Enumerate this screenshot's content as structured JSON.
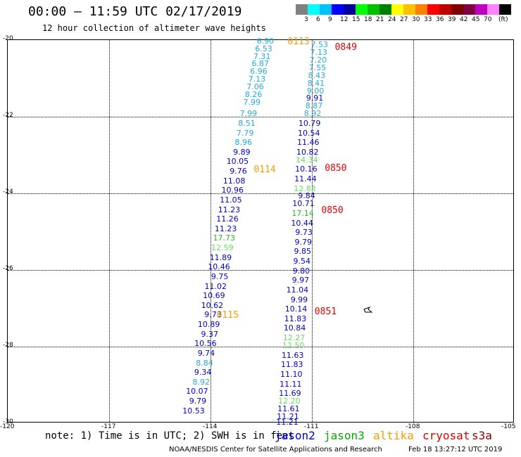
{
  "header": {
    "title": "00:00 – 11:59 UTC 02/17/2019",
    "subtitle": "12 hour collection of altimeter wave heights"
  },
  "colorbar": {
    "unit": "(ft)",
    "colors": [
      "#808080",
      "#00ffff",
      "#00c0ff",
      "#0000ff",
      "#0000a0",
      "#00ff00",
      "#00c000",
      "#008000",
      "#ffff00",
      "#ffc000",
      "#ff8000",
      "#ff0000",
      "#c00000",
      "#800000",
      "#800040",
      "#c000c0",
      "#ff80ff",
      "#000000"
    ],
    "labels": [
      "3",
      "6",
      "9",
      "12",
      "15",
      "18",
      "21",
      "24",
      "27",
      "30",
      "33",
      "36",
      "39",
      "42",
      "45",
      "70"
    ]
  },
  "axes": {
    "lat_labels": [
      "-20",
      "-22",
      "-24",
      "-26",
      "-28",
      "-30"
    ],
    "lon_labels": [
      "-120",
      "-117",
      "-114",
      "-111",
      "-108",
      "-105"
    ],
    "lat_range": [
      -30,
      -20
    ],
    "lon_range": [
      -120,
      -105
    ]
  },
  "passes": [
    {
      "time": "0113",
      "color": "#ff9900",
      "lat": -20.05,
      "lon": -111.7
    },
    {
      "time": "0114",
      "color": "#ff9900",
      "lat": -23.4,
      "lon": -112.7
    },
    {
      "time": "0115",
      "color": "#ff9900",
      "lat": -27.2,
      "lon": -113.8
    },
    {
      "time": "0849",
      "color": "#e00000",
      "lat": -20.2,
      "lon": -110.3
    },
    {
      "time": "0850",
      "color": "#e00000",
      "lat": -23.35,
      "lon": -110.6
    },
    {
      "time": "0850",
      "color": "#e00000",
      "lat": -24.45,
      "lon": -110.7
    },
    {
      "time": "0851",
      "color": "#e00000",
      "lat": -27.1,
      "lon": -110.9
    }
  ],
  "track_west": [
    {
      "v": "6.90",
      "c": "#22aadd",
      "lat": -20.05,
      "lon": -112.1
    },
    {
      "v": "6.53",
      "c": "#22aadd",
      "lat": -20.25,
      "lon": -112.15
    },
    {
      "v": "7.31",
      "c": "#22aadd",
      "lat": -20.45,
      "lon": -112.2
    },
    {
      "v": "6.87",
      "c": "#22aadd",
      "lat": -20.65,
      "lon": -112.25
    },
    {
      "v": "6.96",
      "c": "#22aadd",
      "lat": -20.85,
      "lon": -112.3
    },
    {
      "v": "7.13",
      "c": "#22aadd",
      "lat": -21.05,
      "lon": -112.35
    },
    {
      "v": "7.06",
      "c": "#22aadd",
      "lat": -21.25,
      "lon": -112.4
    },
    {
      "v": "8.26",
      "c": "#22aadd",
      "lat": -21.45,
      "lon": -112.45
    },
    {
      "v": "7.99",
      "c": "#22aadd",
      "lat": -21.65,
      "lon": -112.5
    },
    {
      "v": "7.99",
      "c": "#22aadd",
      "lat": -21.95,
      "lon": -112.6
    },
    {
      "v": "8.51",
      "c": "#22aadd",
      "lat": -22.2,
      "lon": -112.65
    },
    {
      "v": "7.79",
      "c": "#22aadd",
      "lat": -22.45,
      "lon": -112.7
    },
    {
      "v": "8.96",
      "c": "#22aadd",
      "lat": -22.7,
      "lon": -112.75
    },
    {
      "v": "9.89",
      "c": "#0000cc",
      "lat": -22.95,
      "lon": -112.8
    },
    {
      "v": "10.05",
      "c": "#0000cc",
      "lat": -23.2,
      "lon": -112.85
    },
    {
      "v": "9.76",
      "c": "#0000cc",
      "lat": -23.45,
      "lon": -112.9
    },
    {
      "v": "11.08",
      "c": "#0000cc",
      "lat": -23.7,
      "lon": -112.95
    },
    {
      "v": "10.96",
      "c": "#0000cc",
      "lat": -23.95,
      "lon": -113.0
    },
    {
      "v": "11.05",
      "c": "#0000cc",
      "lat": -24.2,
      "lon": -113.05
    },
    {
      "v": "11.23",
      "c": "#0000cc",
      "lat": -24.45,
      "lon": -113.1
    },
    {
      "v": "11.26",
      "c": "#0000cc",
      "lat": -24.7,
      "lon": -113.15
    },
    {
      "v": "11.23",
      "c": "#0000cc",
      "lat": -24.95,
      "lon": -113.2
    },
    {
      "v": "17.73",
      "c": "#22bb22",
      "lat": -25.2,
      "lon": -113.25
    },
    {
      "v": "12.59",
      "c": "#66dd66",
      "lat": -25.45,
      "lon": -113.3
    },
    {
      "v": "11.89",
      "c": "#0000cc",
      "lat": -25.7,
      "lon": -113.35
    },
    {
      "v": "10.46",
      "c": "#0000cc",
      "lat": -25.95,
      "lon": -113.4
    },
    {
      "v": "9.75",
      "c": "#0000cc",
      "lat": -26.2,
      "lon": -113.45
    },
    {
      "v": "11.02",
      "c": "#0000cc",
      "lat": -26.45,
      "lon": -113.5
    },
    {
      "v": "10.69",
      "c": "#0000cc",
      "lat": -26.7,
      "lon": -113.55
    },
    {
      "v": "10.62",
      "c": "#0000cc",
      "lat": -26.95,
      "lon": -113.6
    },
    {
      "v": "9.73",
      "c": "#0000cc",
      "lat": -27.2,
      "lon": -113.65
    },
    {
      "v": "10.89",
      "c": "#0000cc",
      "lat": -27.45,
      "lon": -113.7
    },
    {
      "v": "9.37",
      "c": "#0000cc",
      "lat": -27.7,
      "lon": -113.75
    },
    {
      "v": "10.56",
      "c": "#0000cc",
      "lat": -27.95,
      "lon": -113.8
    },
    {
      "v": "9.74",
      "c": "#0000cc",
      "lat": -28.2,
      "lon": -113.85
    },
    {
      "v": "8.84",
      "c": "#22aadd",
      "lat": -28.45,
      "lon": -113.9
    },
    {
      "v": "9.34",
      "c": "#0000cc",
      "lat": -28.7,
      "lon": -113.95
    },
    {
      "v": "8.92",
      "c": "#22aadd",
      "lat": -28.95,
      "lon": -114.0
    },
    {
      "v": "10.07",
      "c": "#0000cc",
      "lat": -29.2,
      "lon": -114.05
    },
    {
      "v": "9.79",
      "c": "#0000cc",
      "lat": -29.45,
      "lon": -114.1
    },
    {
      "v": "10.53",
      "c": "#0000cc",
      "lat": -29.7,
      "lon": -114.15
    }
  ],
  "track_east": [
    {
      "v": "7.53",
      "c": "#22aadd",
      "lat": -20.15,
      "lon": -110.5
    },
    {
      "v": "7.13",
      "c": "#22aadd",
      "lat": -20.35,
      "lon": -110.52
    },
    {
      "v": "7.20",
      "c": "#22aadd",
      "lat": -20.55,
      "lon": -110.54
    },
    {
      "v": "7.55",
      "c": "#22aadd",
      "lat": -20.75,
      "lon": -110.56
    },
    {
      "v": "8.43",
      "c": "#22aadd",
      "lat": -20.95,
      "lon": -110.58
    },
    {
      "v": "8.41",
      "c": "#22aadd",
      "lat": -21.15,
      "lon": -110.6
    },
    {
      "v": "9.00",
      "c": "#22aadd",
      "lat": -21.35,
      "lon": -110.62
    },
    {
      "v": "9.91",
      "c": "#0000cc",
      "lat": -21.55,
      "lon": -110.64
    },
    {
      "v": "8.87",
      "c": "#22aadd",
      "lat": -21.75,
      "lon": -110.66
    },
    {
      "v": "8.92",
      "c": "#22aadd",
      "lat": -21.95,
      "lon": -110.7
    },
    {
      "v": "10.79",
      "c": "#0000cc",
      "lat": -22.2,
      "lon": -110.72
    },
    {
      "v": "10.54",
      "c": "#0000cc",
      "lat": -22.45,
      "lon": -110.74
    },
    {
      "v": "11.46",
      "c": "#0000cc",
      "lat": -22.7,
      "lon": -110.76
    },
    {
      "v": "10.82",
      "c": "#0000cc",
      "lat": -22.95,
      "lon": -110.78
    },
    {
      "v": "14.34",
      "c": "#66dd66",
      "lat": -23.15,
      "lon": -110.8
    },
    {
      "v": "10.16",
      "c": "#0000cc",
      "lat": -23.4,
      "lon": -110.82
    },
    {
      "v": "11.44",
      "c": "#0000cc",
      "lat": -23.65,
      "lon": -110.84
    },
    {
      "v": "12.83",
      "c": "#66dd66",
      "lat": -23.9,
      "lon": -110.86
    },
    {
      "v": "9.84",
      "c": "#0000cc",
      "lat": -24.1,
      "lon": -110.88
    },
    {
      "v": "10.71",
      "c": "#0000cc",
      "lat": -24.3,
      "lon": -110.9
    },
    {
      "v": "17.14",
      "c": "#22bb22",
      "lat": -24.55,
      "lon": -110.92
    },
    {
      "v": "10.44",
      "c": "#0000cc",
      "lat": -24.8,
      "lon": -110.94
    },
    {
      "v": "9.73",
      "c": "#0000cc",
      "lat": -25.05,
      "lon": -110.96
    },
    {
      "v": "9.79",
      "c": "#0000cc",
      "lat": -25.3,
      "lon": -110.98
    },
    {
      "v": "9.85",
      "c": "#0000cc",
      "lat": -25.55,
      "lon": -111.0
    },
    {
      "v": "9.54",
      "c": "#0000cc",
      "lat": -25.8,
      "lon": -111.02
    },
    {
      "v": "9.80",
      "c": "#0000cc",
      "lat": -26.05,
      "lon": -111.04
    },
    {
      "v": "9.97",
      "c": "#0000cc",
      "lat": -26.3,
      "lon": -111.06
    },
    {
      "v": "11.04",
      "c": "#0000cc",
      "lat": -26.55,
      "lon": -111.08
    },
    {
      "v": "9.99",
      "c": "#0000cc",
      "lat": -26.8,
      "lon": -111.1
    },
    {
      "v": "10.14",
      "c": "#0000cc",
      "lat": -27.05,
      "lon": -111.12
    },
    {
      "v": "11.83",
      "c": "#0000cc",
      "lat": -27.3,
      "lon": -111.14
    },
    {
      "v": "10.84",
      "c": "#0000cc",
      "lat": -27.55,
      "lon": -111.16
    },
    {
      "v": "12.27",
      "c": "#66dd66",
      "lat": -27.8,
      "lon": -111.18
    },
    {
      "v": "12.50",
      "c": "#66dd66",
      "lat": -28.0,
      "lon": -111.2
    },
    {
      "v": "11.63",
      "c": "#0000cc",
      "lat": -28.25,
      "lon": -111.22
    },
    {
      "v": "11.83",
      "c": "#0000cc",
      "lat": -28.5,
      "lon": -111.24
    },
    {
      "v": "11.10",
      "c": "#0000cc",
      "lat": -28.75,
      "lon": -111.26
    },
    {
      "v": "11.11",
      "c": "#0000cc",
      "lat": -29.0,
      "lon": -111.28
    },
    {
      "v": "11.69",
      "c": "#0000cc",
      "lat": -29.25,
      "lon": -111.3
    },
    {
      "v": "12.20",
      "c": "#66dd66",
      "lat": -29.45,
      "lon": -111.32
    },
    {
      "v": "11.61",
      "c": "#0000cc",
      "lat": -29.65,
      "lon": -111.34
    },
    {
      "v": "11.21",
      "c": "#0000cc",
      "lat": -29.85,
      "lon": -111.36
    },
    {
      "v": "11.21",
      "c": "#0000cc",
      "lat": -30.0,
      "lon": -111.38
    }
  ],
  "footer": {
    "note": "note: 1) Time is in UTC; 2) SWH is in feet",
    "satellites": [
      {
        "name": "jason2",
        "color": "#0000dd"
      },
      {
        "name": "jason3",
        "color": "#00aa00"
      },
      {
        "name": "altika",
        "color": "#ff9900"
      },
      {
        "name": "cryosat",
        "color": "#dd0000"
      },
      {
        "name": "s3a",
        "color": "#880000"
      }
    ],
    "credit": "NOAA/NESDIS Center for Satellite Applications and Research",
    "timestamp": "Feb 18 13:27:12 UTC 2019"
  }
}
